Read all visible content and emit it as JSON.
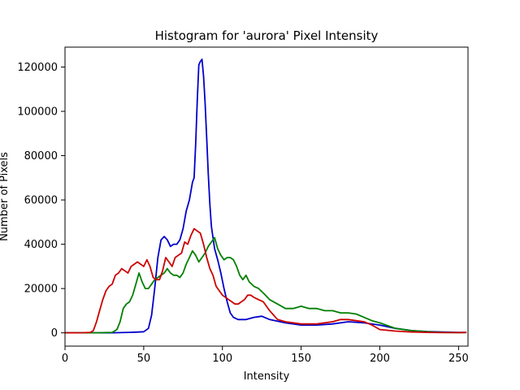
{
  "chart_data": {
    "type": "line",
    "title": "Histogram for 'aurora' Pixel Intensity",
    "xlabel": "Intensity",
    "ylabel": "Number of Pixels",
    "xlim": [
      0,
      256
    ],
    "ylim": [
      -6000,
      129000
    ],
    "xticks": [
      0,
      50,
      100,
      150,
      200,
      250
    ],
    "yticks": [
      0,
      20000,
      40000,
      60000,
      80000,
      100000,
      120000
    ],
    "grid": false,
    "series": [
      {
        "color": "#0000cc",
        "x": [
          0,
          10,
          20,
          30,
          40,
          45,
          50,
          53,
          55,
          57,
          59,
          61,
          63,
          65,
          67,
          69,
          71,
          73,
          75,
          77,
          79,
          81,
          82,
          83,
          84,
          85,
          86,
          87,
          88,
          89,
          90,
          91,
          92,
          93,
          95,
          97,
          99,
          101,
          103,
          105,
          107,
          110,
          115,
          120,
          125,
          130,
          140,
          150,
          160,
          170,
          180,
          190,
          200,
          210,
          220,
          230,
          240,
          250,
          255
        ],
        "y": [
          0,
          0,
          0,
          0,
          200,
          300,
          500,
          2000,
          8000,
          20000,
          34000,
          42000,
          43500,
          42000,
          39000,
          40000,
          40000,
          42000,
          47000,
          55000,
          60000,
          68000,
          70000,
          85000,
          105000,
          121000,
          122500,
          123500,
          116000,
          104000,
          88000,
          72000,
          58000,
          48000,
          38000,
          33000,
          27000,
          20000,
          14000,
          9000,
          7000,
          6000,
          6000,
          7000,
          7500,
          6000,
          4500,
          3500,
          3500,
          4000,
          5000,
          4500,
          3500,
          2000,
          1000,
          600,
          400,
          200,
          200
        ]
      },
      {
        "color": "#008000",
        "x": [
          0,
          20,
          30,
          33,
          35,
          37,
          39,
          41,
          43,
          45,
          47,
          49,
          51,
          53,
          55,
          57,
          59,
          61,
          63,
          65,
          67,
          69,
          71,
          73,
          75,
          77,
          79,
          81,
          83,
          85,
          87,
          89,
          91,
          93,
          95,
          97,
          99,
          101,
          103,
          105,
          107,
          109,
          111,
          113,
          115,
          117,
          120,
          123,
          126,
          130,
          135,
          140,
          145,
          150,
          155,
          160,
          165,
          170,
          175,
          180,
          185,
          190,
          195,
          200,
          210,
          220,
          230,
          240,
          250,
          255
        ],
        "y": [
          0,
          0,
          200,
          1500,
          5000,
          11000,
          13000,
          14000,
          17000,
          22000,
          27000,
          23000,
          20000,
          20000,
          22000,
          24000,
          25000,
          26000,
          27000,
          29000,
          27000,
          26000,
          26000,
          25000,
          27000,
          31000,
          34000,
          37000,
          35000,
          32000,
          34000,
          36000,
          39000,
          41000,
          43000,
          38000,
          35000,
          33000,
          34000,
          34000,
          33000,
          30000,
          26000,
          24000,
          26000,
          23000,
          21000,
          20000,
          18000,
          15000,
          13000,
          11000,
          11000,
          12000,
          11000,
          11000,
          10000,
          10000,
          9000,
          9000,
          8500,
          7000,
          5500,
          4500,
          2000,
          1000,
          500,
          200,
          100,
          100
        ]
      },
      {
        "color": "#cc0000",
        "x": [
          0,
          10,
          16,
          18,
          20,
          22,
          24,
          26,
          28,
          30,
          32,
          34,
          36,
          38,
          40,
          42,
          44,
          46,
          48,
          50,
          52,
          54,
          56,
          58,
          60,
          62,
          64,
          66,
          68,
          70,
          72,
          74,
          76,
          78,
          80,
          82,
          84,
          86,
          88,
          90,
          92,
          94,
          96,
          98,
          100,
          102,
          104,
          106,
          108,
          110,
          112,
          114,
          116,
          118,
          120,
          123,
          126,
          130,
          135,
          140,
          150,
          160,
          170,
          175,
          180,
          185,
          190,
          195,
          200,
          210,
          220,
          230,
          240,
          250,
          255
        ],
        "y": [
          0,
          0,
          200,
          1000,
          5000,
          10000,
          15000,
          19000,
          21000,
          22000,
          26000,
          27000,
          29000,
          28000,
          27000,
          30000,
          31000,
          32000,
          31000,
          30000,
          33000,
          30000,
          25000,
          24000,
          24000,
          28000,
          34000,
          32000,
          30000,
          34000,
          35000,
          36000,
          41000,
          40000,
          44000,
          47000,
          46000,
          45000,
          40000,
          34000,
          29000,
          26000,
          21000,
          19000,
          17000,
          16000,
          15000,
          14000,
          13000,
          13000,
          14000,
          15000,
          17000,
          17000,
          16000,
          15000,
          14000,
          10000,
          6000,
          5000,
          4000,
          4000,
          5000,
          6000,
          6000,
          5500,
          5000,
          3500,
          1500,
          800,
          400,
          200,
          100,
          100,
          200
        ]
      }
    ]
  }
}
